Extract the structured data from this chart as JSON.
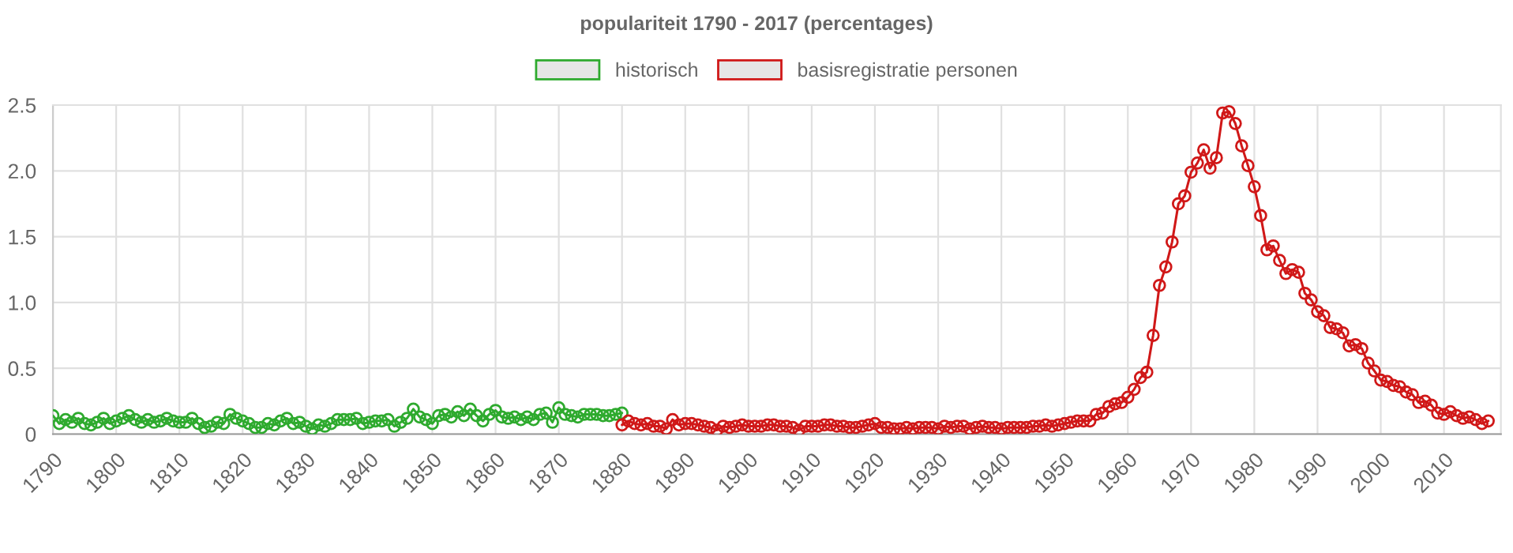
{
  "chart_data": {
    "type": "line",
    "title": "populariteit 1790 - 2017 (percentages)",
    "xlim": [
      1790,
      2019
    ],
    "xticks": [
      1790,
      1800,
      1810,
      1820,
      1830,
      1840,
      1850,
      1860,
      1870,
      1880,
      1890,
      1900,
      1910,
      1920,
      1930,
      1940,
      1950,
      1960,
      1970,
      1980,
      1990,
      2000,
      2010
    ],
    "ylim": [
      0,
      2.5
    ],
    "yticks": [
      0,
      0.5,
      {
        "value": 1,
        "label": "1.0"
      },
      1.5,
      {
        "value": 2,
        "label": "2.0"
      },
      2.5
    ],
    "grid": true,
    "legend": "top",
    "marker": "circle",
    "line_style": "solid",
    "series": [
      {
        "name": "historisch",
        "color": "#2eaa2e",
        "x": [
          1790,
          1791,
          1792,
          1793,
          1794,
          1795,
          1796,
          1797,
          1798,
          1799,
          1800,
          1801,
          1802,
          1803,
          1804,
          1805,
          1806,
          1807,
          1808,
          1809,
          1810,
          1811,
          1812,
          1813,
          1814,
          1815,
          1816,
          1817,
          1818,
          1819,
          1820,
          1821,
          1822,
          1823,
          1824,
          1825,
          1826,
          1827,
          1828,
          1829,
          1830,
          1831,
          1832,
          1833,
          1834,
          1835,
          1836,
          1837,
          1838,
          1839,
          1840,
          1841,
          1842,
          1843,
          1844,
          1845,
          1846,
          1847,
          1848,
          1849,
          1850,
          1851,
          1852,
          1853,
          1854,
          1855,
          1856,
          1857,
          1858,
          1859,
          1860,
          1861,
          1862,
          1863,
          1864,
          1865,
          1866,
          1867,
          1868,
          1869,
          1870,
          1871,
          1872,
          1873,
          1874,
          1875,
          1876,
          1877,
          1878,
          1879,
          1880
        ],
        "values": [
          0.14,
          0.08,
          0.11,
          0.09,
          0.12,
          0.08,
          0.07,
          0.09,
          0.12,
          0.08,
          0.1,
          0.12,
          0.14,
          0.11,
          0.09,
          0.11,
          0.09,
          0.1,
          0.12,
          0.1,
          0.09,
          0.09,
          0.12,
          0.08,
          0.05,
          0.06,
          0.09,
          0.08,
          0.15,
          0.12,
          0.1,
          0.08,
          0.05,
          0.05,
          0.08,
          0.07,
          0.1,
          0.12,
          0.08,
          0.09,
          0.06,
          0.04,
          0.07,
          0.06,
          0.08,
          0.11,
          0.11,
          0.11,
          0.12,
          0.08,
          0.09,
          0.1,
          0.1,
          0.11,
          0.06,
          0.09,
          0.12,
          0.19,
          0.13,
          0.11,
          0.08,
          0.14,
          0.15,
          0.13,
          0.17,
          0.14,
          0.19,
          0.14,
          0.1,
          0.15,
          0.18,
          0.13,
          0.12,
          0.13,
          0.11,
          0.13,
          0.11,
          0.15,
          0.16,
          0.09,
          0.2,
          0.15,
          0.14,
          0.13,
          0.15,
          0.15,
          0.15,
          0.14,
          0.14,
          0.15,
          0.16
        ]
      },
      {
        "name": "basisregistratie personen",
        "color": "#d01818",
        "x": [
          1880,
          1881,
          1882,
          1883,
          1884,
          1885,
          1886,
          1887,
          1888,
          1889,
          1890,
          1891,
          1892,
          1893,
          1894,
          1895,
          1896,
          1897,
          1898,
          1899,
          1900,
          1901,
          1902,
          1903,
          1904,
          1905,
          1906,
          1907,
          1908,
          1909,
          1910,
          1911,
          1912,
          1913,
          1914,
          1915,
          1916,
          1917,
          1918,
          1919,
          1920,
          1921,
          1922,
          1923,
          1924,
          1925,
          1926,
          1927,
          1928,
          1929,
          1930,
          1931,
          1932,
          1933,
          1934,
          1935,
          1936,
          1937,
          1938,
          1939,
          1940,
          1941,
          1942,
          1943,
          1944,
          1945,
          1946,
          1947,
          1948,
          1949,
          1950,
          1951,
          1952,
          1953,
          1954,
          1955,
          1956,
          1957,
          1958,
          1959,
          1960,
          1961,
          1962,
          1963,
          1964,
          1965,
          1966,
          1967,
          1968,
          1969,
          1970,
          1971,
          1972,
          1973,
          1974,
          1975,
          1976,
          1977,
          1978,
          1979,
          1980,
          1981,
          1982,
          1983,
          1984,
          1985,
          1986,
          1987,
          1988,
          1989,
          1990,
          1991,
          1992,
          1993,
          1994,
          1995,
          1996,
          1997,
          1998,
          1999,
          2000,
          2001,
          2002,
          2003,
          2004,
          2005,
          2006,
          2007,
          2008,
          2009,
          2010,
          2011,
          2012,
          2013,
          2014,
          2015,
          2016,
          2017
        ],
        "values": [
          0.07,
          0.1,
          0.08,
          0.07,
          0.08,
          0.06,
          0.06,
          0.04,
          0.11,
          0.07,
          0.08,
          0.08,
          0.07,
          0.06,
          0.05,
          0.03,
          0.06,
          0.05,
          0.06,
          0.07,
          0.06,
          0.06,
          0.06,
          0.07,
          0.07,
          0.06,
          0.06,
          0.05,
          0.03,
          0.06,
          0.06,
          0.06,
          0.07,
          0.07,
          0.06,
          0.06,
          0.05,
          0.05,
          0.06,
          0.07,
          0.08,
          0.05,
          0.05,
          0.04,
          0.04,
          0.05,
          0.04,
          0.05,
          0.05,
          0.05,
          0.04,
          0.06,
          0.05,
          0.06,
          0.06,
          0.04,
          0.05,
          0.06,
          0.05,
          0.05,
          0.04,
          0.05,
          0.05,
          0.05,
          0.05,
          0.06,
          0.06,
          0.07,
          0.06,
          0.07,
          0.08,
          0.09,
          0.1,
          0.1,
          0.1,
          0.15,
          0.16,
          0.21,
          0.23,
          0.24,
          0.28,
          0.34,
          0.43,
          0.47,
          0.75,
          1.13,
          1.27,
          1.46,
          1.75,
          1.81,
          1.99,
          2.06,
          2.16,
          2.02,
          2.1,
          2.44,
          2.45,
          2.36,
          2.19,
          2.04,
          1.88,
          1.66,
          1.4,
          1.43,
          1.32,
          1.22,
          1.25,
          1.23,
          1.07,
          1.02,
          0.93,
          0.9,
          0.81,
          0.8,
          0.77,
          0.67,
          0.68,
          0.65,
          0.54,
          0.48,
          0.41,
          0.4,
          0.37,
          0.36,
          0.32,
          0.3,
          0.24,
          0.25,
          0.22,
          0.16,
          0.15,
          0.17,
          0.14,
          0.12,
          0.13,
          0.11,
          0.08,
          0.1
        ]
      }
    ]
  }
}
